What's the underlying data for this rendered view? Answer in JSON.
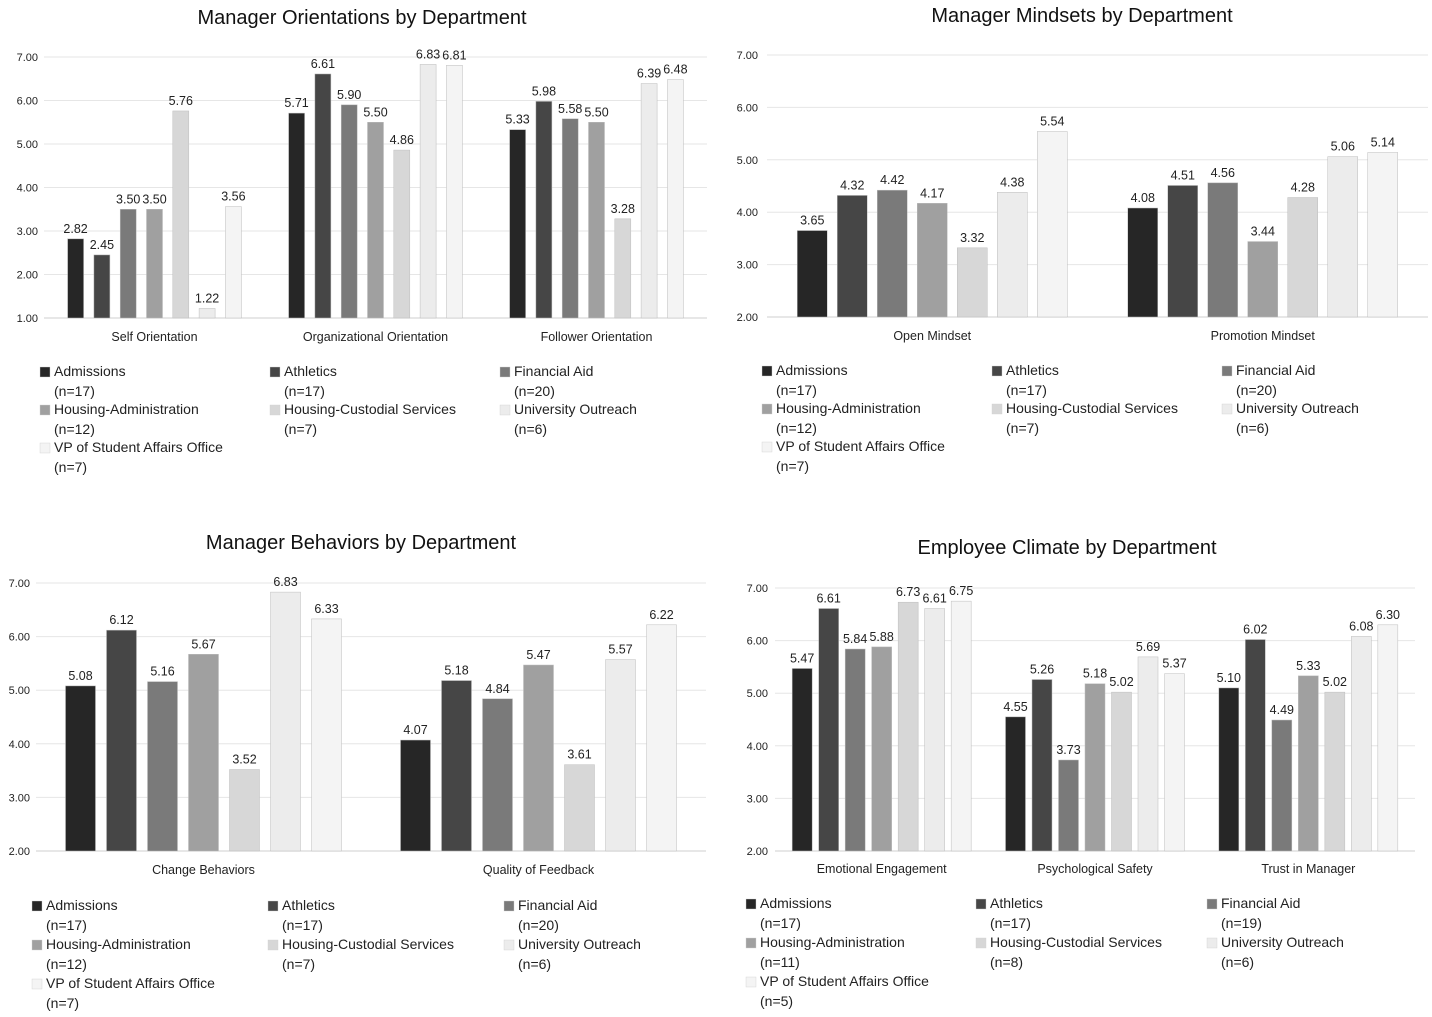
{
  "chart_data": [
    {
      "type": "bar",
      "title": "Manager Orientations by Department",
      "ylim": [
        1,
        7
      ],
      "yticks": [
        "1.00",
        "2.00",
        "3.00",
        "4.00",
        "5.00",
        "6.00",
        "7.00"
      ],
      "categories": [
        "Self Orientation",
        "Organizational Orientation",
        "Follower Orientation"
      ],
      "series": [
        {
          "name": "Admissions",
          "n": "(n=17)",
          "color": "#262626",
          "values": [
            2.82,
            5.71,
            5.33
          ]
        },
        {
          "name": "Athletics",
          "n": "(n=17)",
          "color": "#464646",
          "values": [
            2.45,
            6.61,
            5.98
          ]
        },
        {
          "name": "Financial Aid",
          "n": "(n=20)",
          "color": "#7a7a7a",
          "values": [
            3.5,
            5.9,
            5.58
          ]
        },
        {
          "name": "Housing-Administration",
          "n": "(n=12)",
          "color": "#a0a0a0",
          "values": [
            3.5,
            5.5,
            5.5
          ]
        },
        {
          "name": "Housing-Custodial Services",
          "n": "(n=7)",
          "color": "#d7d7d7",
          "values": [
            5.76,
            4.86,
            3.28
          ]
        },
        {
          "name": "University Outreach",
          "n": "(n=6)",
          "color": "#ececec",
          "values": [
            1.22,
            6.83,
            6.39
          ]
        },
        {
          "name": "VP of Student Affairs Office",
          "n": "(n=7)",
          "color": "#f4f4f4",
          "values": [
            3.56,
            6.81,
            6.48
          ]
        }
      ],
      "legend": "bottom"
    },
    {
      "type": "bar",
      "title": "Manager Mindsets by Department",
      "ylim": [
        2,
        7
      ],
      "yticks": [
        "2.00",
        "3.00",
        "4.00",
        "5.00",
        "6.00",
        "7.00"
      ],
      "categories": [
        "Open Mindset",
        "Promotion Mindset"
      ],
      "series": [
        {
          "name": "Admissions",
          "n": "(n=17)",
          "color": "#262626",
          "values": [
            3.65,
            4.08
          ]
        },
        {
          "name": "Athletics",
          "n": "(n=17)",
          "color": "#464646",
          "values": [
            4.32,
            4.51
          ]
        },
        {
          "name": "Financial Aid",
          "n": "(n=20)",
          "color": "#7a7a7a",
          "values": [
            4.42,
            4.56
          ]
        },
        {
          "name": "Housing-Administration",
          "n": "(n=12)",
          "color": "#a0a0a0",
          "values": [
            4.17,
            3.44
          ]
        },
        {
          "name": "Housing-Custodial Services",
          "n": "(n=7)",
          "color": "#d7d7d7",
          "values": [
            3.32,
            4.28
          ]
        },
        {
          "name": "University Outreach",
          "n": "(n=6)",
          "color": "#ececec",
          "values": [
            4.38,
            5.06
          ]
        },
        {
          "name": "VP of Student Affairs Office",
          "n": "(n=7)",
          "color": "#f4f4f4",
          "values": [
            5.54,
            5.14
          ]
        }
      ],
      "legend": "bottom"
    },
    {
      "type": "bar",
      "title": "Manager Behaviors by Department",
      "ylim": [
        2,
        7
      ],
      "yticks": [
        "2.00",
        "3.00",
        "4.00",
        "5.00",
        "6.00",
        "7.00"
      ],
      "categories": [
        "Change Behaviors",
        "Quality of Feedback"
      ],
      "series": [
        {
          "name": "Admissions",
          "n": "(n=17)",
          "color": "#262626",
          "values": [
            5.08,
            4.07
          ]
        },
        {
          "name": "Athletics",
          "n": "(n=17)",
          "color": "#464646",
          "values": [
            6.12,
            5.18
          ]
        },
        {
          "name": "Financial Aid",
          "n": "(n=20)",
          "color": "#7a7a7a",
          "values": [
            5.16,
            4.84
          ]
        },
        {
          "name": "Housing-Administration",
          "n": "(n=12)",
          "color": "#a0a0a0",
          "values": [
            5.67,
            5.47
          ]
        },
        {
          "name": "Housing-Custodial Services",
          "n": "(n=7)",
          "color": "#d7d7d7",
          "values": [
            3.52,
            3.61
          ]
        },
        {
          "name": "University Outreach",
          "n": "(n=6)",
          "color": "#ececec",
          "values": [
            6.83,
            5.57
          ]
        },
        {
          "name": "VP of Student Affairs Office",
          "n": "(n=7)",
          "color": "#f4f4f4",
          "values": [
            6.33,
            6.22
          ]
        }
      ],
      "legend": "bottom"
    },
    {
      "type": "bar",
      "title": "Employee Climate by Department",
      "ylim": [
        2,
        7
      ],
      "yticks": [
        "2.00",
        "3.00",
        "4.00",
        "5.00",
        "6.00",
        "7.00"
      ],
      "categories": [
        "Emotional Engagement",
        "Psychological Safety",
        "Trust in Manager"
      ],
      "series": [
        {
          "name": "Admissions",
          "n": "(n=17)",
          "color": "#262626",
          "values": [
            5.47,
            4.55,
            5.1
          ]
        },
        {
          "name": "Athletics",
          "n": "(n=17)",
          "color": "#464646",
          "values": [
            6.61,
            5.26,
            6.02
          ]
        },
        {
          "name": "Financial Aid",
          "n": "(n=19)",
          "color": "#7a7a7a",
          "values": [
            5.84,
            3.73,
            4.49
          ]
        },
        {
          "name": "Housing-Administration",
          "n": "(n=11)",
          "color": "#a0a0a0",
          "values": [
            5.88,
            5.18,
            5.33
          ]
        },
        {
          "name": "Housing-Custodial Services",
          "n": "(n=8)",
          "color": "#d7d7d7",
          "values": [
            6.73,
            5.02,
            5.02
          ]
        },
        {
          "name": "University Outreach",
          "n": "(n=6)",
          "color": "#ececec",
          "values": [
            6.61,
            5.69,
            6.08
          ]
        },
        {
          "name": "VP of Student Affairs Office",
          "n": "(n=5)",
          "color": "#f4f4f4",
          "values": [
            6.75,
            5.37,
            6.3
          ]
        }
      ],
      "legend": "bottom"
    }
  ]
}
